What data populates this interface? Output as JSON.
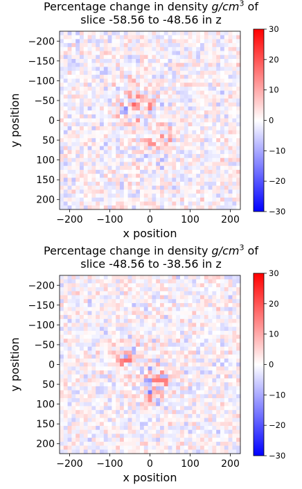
{
  "chart_data": [
    {
      "type": "heatmap",
      "title_prefix": "Percentage change in density ",
      "title_unit_base": "g/cm",
      "title_unit_exp": "3",
      "title_suffix": " of",
      "title_line2": "slice -58.56 to -48.56 in z",
      "xlabel": "x position",
      "ylabel": "y position",
      "xticks": [
        "−200",
        "−100",
        "0",
        "100",
        "200"
      ],
      "yticks": [
        "−200",
        "−150",
        "−100",
        "−50",
        "0",
        "50",
        "100",
        "150",
        "200"
      ],
      "xlim": [
        -225,
        225
      ],
      "ylim": [
        -225,
        225
      ],
      "y_inverted": true,
      "colorbar_ticks": [
        "30",
        "20",
        "10",
        "0",
        "−10",
        "−20",
        "−30"
      ],
      "color_range": [
        -30,
        30
      ],
      "colormap": "bwr",
      "grid_size": 45,
      "hotspots": [
        {
          "x": -30,
          "y": -40,
          "amp": 12,
          "r": 55
        },
        {
          "x": 20,
          "y": 50,
          "amp": 10,
          "r": 40
        },
        {
          "x": 25,
          "y": 110,
          "amp": -8,
          "r": 20
        }
      ],
      "noise_amp": 5,
      "seed": 7
    },
    {
      "type": "heatmap",
      "title_prefix": "Percentage change in density ",
      "title_unit_base": "g/cm",
      "title_unit_exp": "3",
      "title_suffix": " of",
      "title_line2": "slice -48.56 to -38.56 in z",
      "xlabel": "x position",
      "ylabel": "y position",
      "xticks": [
        "−200",
        "−100",
        "0",
        "100",
        "200"
      ],
      "yticks": [
        "−200",
        "−150",
        "−100",
        "−50",
        "0",
        "50",
        "100",
        "150",
        "200"
      ],
      "xlim": [
        -225,
        225
      ],
      "ylim": [
        -225,
        225
      ],
      "y_inverted": true,
      "colorbar_ticks": [
        "30",
        "20",
        "10",
        "0",
        "−10",
        "−20",
        "−30"
      ],
      "color_range": [
        -30,
        30
      ],
      "colormap": "bwr",
      "grid_size": 45,
      "hotspots": [
        {
          "x": -60,
          "y": -20,
          "amp": 14,
          "r": 35
        },
        {
          "x": 10,
          "y": 40,
          "amp": 12,
          "r": 45
        },
        {
          "x": 20,
          "y": 80,
          "amp": 14,
          "r": 25
        }
      ],
      "noise_amp": 5,
      "seed": 13
    }
  ]
}
